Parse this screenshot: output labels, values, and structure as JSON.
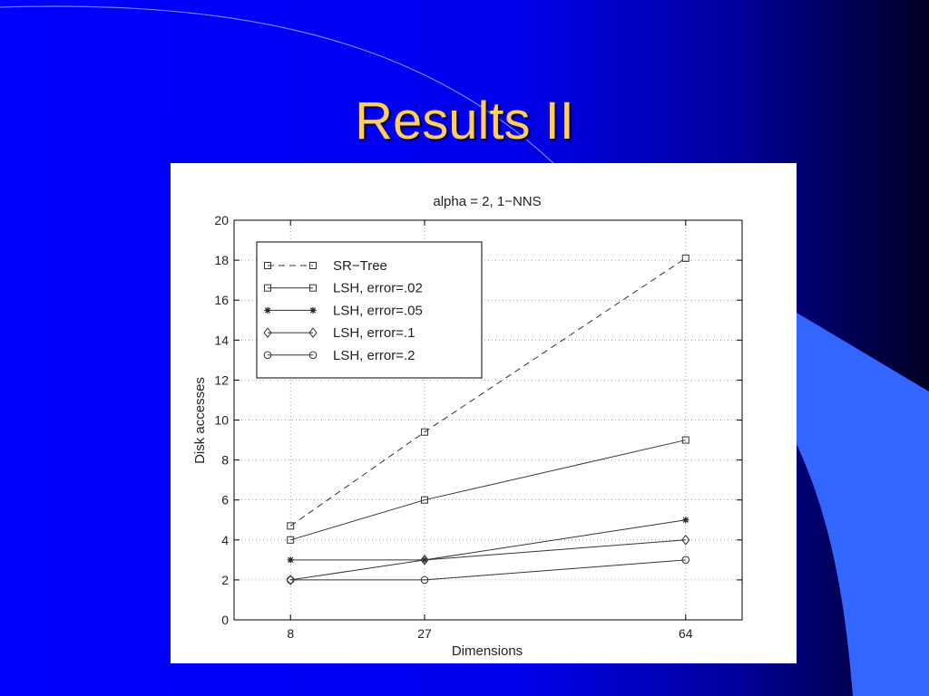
{
  "slide": {
    "title": "Results II",
    "colors": {
      "background": "#0000ff",
      "title": "#ffcc66",
      "accent": "#3366ff"
    }
  },
  "chart_data": {
    "type": "line",
    "title": "alpha = 2, 1−NNS",
    "xlabel": "Dimensions",
    "ylabel": "Disk accesses",
    "x": [
      8,
      27,
      64
    ],
    "xticks": [
      "8",
      "27",
      "64"
    ],
    "xlim": [
      0,
      72
    ],
    "ylim": [
      0,
      20
    ],
    "yticks": [
      0,
      2,
      4,
      6,
      8,
      10,
      12,
      14,
      16,
      18,
      20
    ],
    "grid": true,
    "legend_position": "top-left",
    "series": [
      {
        "name": "SR−Tree",
        "values": [
          4.7,
          9.4,
          18.1
        ],
        "marker": "square",
        "dashed": true
      },
      {
        "name": "LSH, error=.02",
        "values": [
          4.0,
          6.0,
          9.0
        ],
        "marker": "square",
        "dashed": false
      },
      {
        "name": "LSH, error=.05",
        "values": [
          3.0,
          3.0,
          5.0
        ],
        "marker": "star",
        "dashed": false
      },
      {
        "name": "LSH, error=.1",
        "values": [
          2.0,
          3.0,
          4.0
        ],
        "marker": "diamond",
        "dashed": false
      },
      {
        "name": "LSH, error=.2",
        "values": [
          2.0,
          2.0,
          3.0
        ],
        "marker": "circle",
        "dashed": false
      }
    ]
  }
}
